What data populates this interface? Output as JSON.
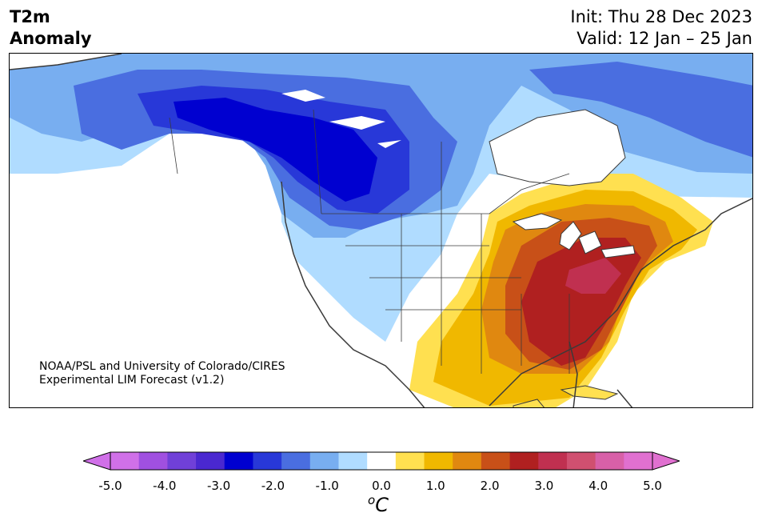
{
  "title": {
    "line1": "T2m",
    "line2": "Anomaly"
  },
  "init": "Init: Thu 28 Dec 2023",
  "valid": "Valid: 12 Jan – 25 Jan",
  "credit": {
    "line1": "NOAA/PSL and University of Colorado/CIRES",
    "line2": "Experimental LIM Forecast (v1.2)"
  },
  "colorbar": {
    "unit_base": "o",
    "unit_letter": "C",
    "tick_labels": [
      "-5.0",
      "-4.0",
      "-3.0",
      "-2.0",
      "-1.0",
      "0.0",
      "1.0",
      "2.0",
      "3.0",
      "4.0",
      "5.0"
    ],
    "tick_values": [
      -5,
      -4,
      -3,
      -2,
      -1,
      0,
      1,
      2,
      3,
      4,
      5
    ],
    "levels": [
      -5.0,
      -4.5,
      -4.0,
      -3.5,
      -3.0,
      -2.5,
      -2.0,
      -1.5,
      -1.0,
      -0.5,
      0.5,
      1.0,
      1.5,
      2.0,
      2.5,
      3.0,
      3.5,
      4.0,
      4.5,
      5.0
    ],
    "colors": [
      "#d070e8",
      "#a050e0",
      "#7040d8",
      "#4a28d0",
      "#0000d0",
      "#2838d8",
      "#4a6ee0",
      "#78aef0",
      "#b0dcff",
      "#ffffff",
      "#ffe050",
      "#f0b800",
      "#e08810",
      "#c85018",
      "#b02020",
      "#c03050",
      "#d05070",
      "#d860a8",
      "#e070d0"
    ],
    "under_color": "#d070e8",
    "over_color": "#e070d0"
  },
  "map": {
    "variable": "2-m temperature anomaly",
    "region": "North America",
    "coastline_color": "#3a3a3a"
  }
}
